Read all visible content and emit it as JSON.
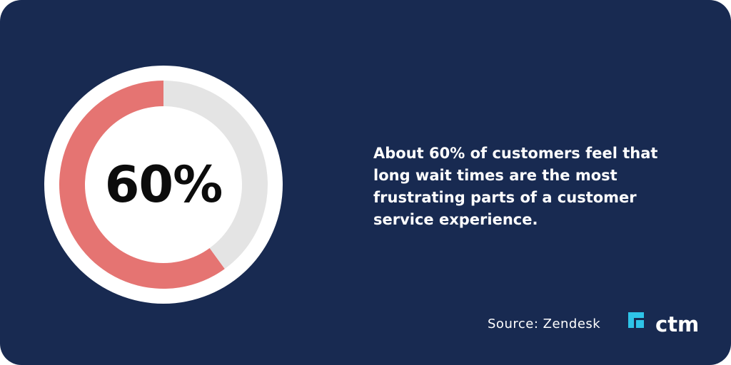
{
  "chart_data": {
    "type": "pie",
    "style": "donut",
    "values": [
      60,
      40
    ],
    "center_label": "60%",
    "colors": [
      "#e57472",
      "#e4e4e4"
    ]
  },
  "stat": {
    "text": "About 60% of customers feel that long wait times are the most frustrating parts of a customer service experience."
  },
  "source": {
    "text": "Source: Zendesk"
  },
  "logo": {
    "text": "ctm",
    "icon": "ctm-logo-mark-icon",
    "color": "#2ec4e8"
  },
  "colors": {
    "background": "#182a51",
    "ring_outer": "#ffffff"
  }
}
